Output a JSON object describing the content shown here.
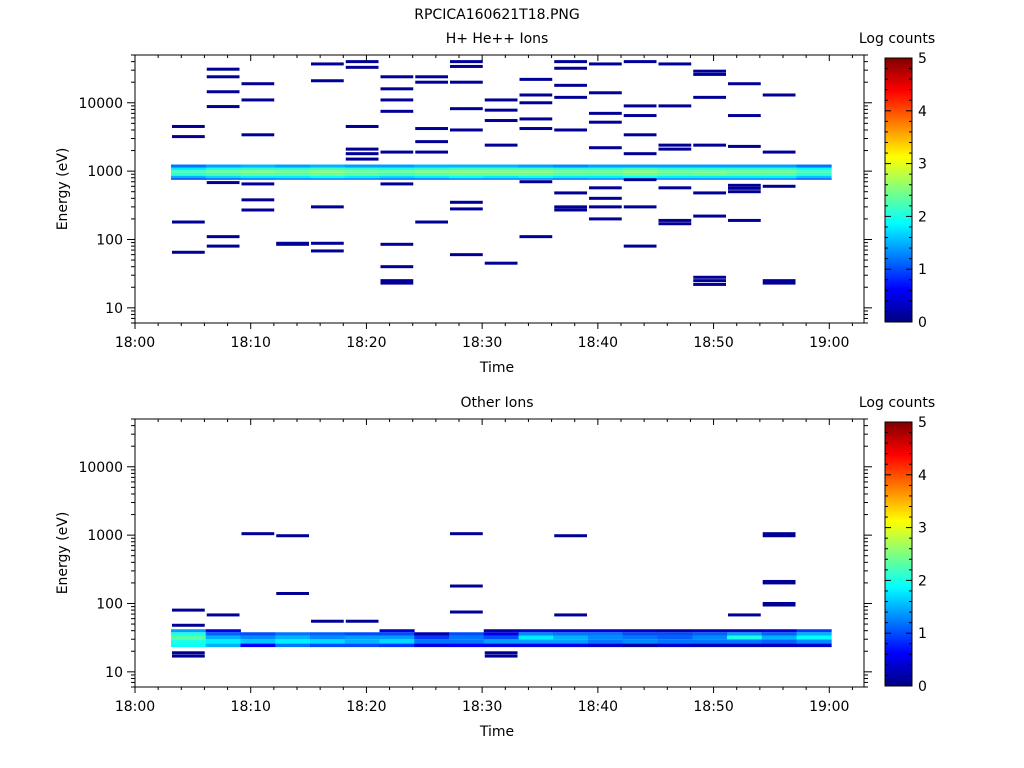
{
  "figure": {
    "title": "RPCICA160621T18.PNG"
  },
  "colorbar": {
    "label": "Log counts",
    "range": [
      0,
      5
    ],
    "ticks": [
      "0",
      "1",
      "2",
      "3",
      "4",
      "5"
    ],
    "colormap": "jet"
  },
  "chart_data": [
    {
      "type": "heatmap",
      "title": "H+ He++ Ions",
      "xlabel": "Time",
      "ylabel": "Energy (eV)",
      "yscale": "log",
      "ylim": [
        6,
        50000
      ],
      "xlim": [
        "18:00",
        "19:03"
      ],
      "xtick_labels": [
        "18:00",
        "18:10",
        "18:20",
        "18:30",
        "18:40",
        "18:50",
        "19:00"
      ],
      "ytick_labels": [
        "10",
        "100",
        "1000",
        "10000"
      ],
      "time_bins": [
        "18:03",
        "18:06",
        "18:09",
        "18:13",
        "18:16",
        "18:19",
        "18:22",
        "18:25",
        "18:28",
        "18:32",
        "18:35",
        "18:38",
        "18:41",
        "18:44",
        "18:47",
        "18:51",
        "18:54",
        "18:57",
        "19:00"
      ],
      "main_band": {
        "energy_low_eV": 750,
        "energy_high_eV": 1250,
        "rows": [
          {
            "energy_eV": 750,
            "values": [
              0.7,
              0.8,
              0.9,
              1.0,
              1.0,
              1.0,
              0.9,
              0.9,
              1.0,
              1.0,
              1.0,
              0.9,
              1.0,
              1.0,
              1.0,
              1.0,
              1.0,
              1.0,
              0.8
            ]
          },
          {
            "energy_eV": 820,
            "values": [
              1.5,
              1.7,
              1.8,
              1.8,
              1.9,
              1.8,
              1.7,
              1.8,
              1.9,
              1.8,
              1.9,
              1.8,
              1.8,
              1.9,
              1.8,
              1.8,
              1.8,
              1.8,
              1.6
            ]
          },
          {
            "energy_eV": 900,
            "values": [
              2.1,
              2.2,
              2.3,
              2.3,
              2.4,
              2.3,
              2.2,
              2.3,
              2.4,
              2.4,
              2.4,
              2.3,
              2.3,
              2.4,
              2.3,
              2.4,
              2.3,
              2.3,
              2.1
            ]
          },
          {
            "energy_eV": 990,
            "values": [
              2.2,
              2.4,
              2.5,
              2.4,
              2.5,
              2.4,
              2.4,
              2.5,
              2.5,
              2.5,
              2.5,
              2.4,
              2.4,
              2.5,
              2.4,
              2.4,
              2.4,
              2.4,
              2.2
            ]
          },
          {
            "energy_eV": 1080,
            "values": [
              1.8,
              2.0,
              2.1,
              2.1,
              2.2,
              2.1,
              2.0,
              2.1,
              2.2,
              2.2,
              2.2,
              2.1,
              2.1,
              2.2,
              2.1,
              2.1,
              2.1,
              2.1,
              1.9
            ]
          },
          {
            "energy_eV": 1180,
            "values": [
              1.2,
              1.4,
              1.5,
              1.4,
              1.5,
              1.4,
              1.4,
              1.5,
              1.5,
              1.5,
              1.4,
              1.3,
              1.4,
              1.4,
              1.4,
              1.4,
              1.4,
              1.4,
              1.2
            ]
          }
        ]
      },
      "isolated_counts": [
        {
          "t": 0,
          "e": [
            65,
            180,
            3200,
            4500
          ]
        },
        {
          "t": 1,
          "e": [
            80,
            110,
            680,
            8800,
            14500,
            24000,
            31000
          ]
        },
        {
          "t": 2,
          "e": [
            270,
            380,
            650,
            3400,
            11000,
            19000
          ]
        },
        {
          "t": 3,
          "e": [
            85,
            88
          ]
        },
        {
          "t": 4,
          "e": [
            68,
            88,
            300,
            21000,
            37000
          ]
        },
        {
          "t": 5,
          "e": [
            1500,
            1800,
            2100,
            4500,
            33000,
            40000
          ]
        },
        {
          "t": 6,
          "e": [
            23,
            25,
            40,
            85,
            650,
            1900,
            7500,
            11000,
            16000,
            24000
          ]
        },
        {
          "t": 7,
          "e": [
            180,
            1900,
            2700,
            4200,
            20000,
            24000
          ]
        },
        {
          "t": 8,
          "e": [
            60,
            280,
            350,
            4000,
            8200,
            20000,
            34000,
            40000
          ]
        },
        {
          "t": 9,
          "e": [
            45,
            2400,
            5500,
            7800,
            11000
          ]
        },
        {
          "t": 10,
          "e": [
            110,
            700,
            4200,
            5800,
            10000,
            13000,
            22000
          ]
        },
        {
          "t": 11,
          "e": [
            270,
            300,
            480,
            4000,
            12000,
            18000,
            32000,
            40000
          ]
        },
        {
          "t": 12,
          "e": [
            200,
            300,
            400,
            570,
            2200,
            5200,
            7000,
            14000,
            37000
          ]
        },
        {
          "t": 13,
          "e": [
            80,
            300,
            750,
            1800,
            3400,
            6500,
            9000,
            40000
          ]
        },
        {
          "t": 14,
          "e": [
            170,
            190,
            570,
            2100,
            2400,
            9000,
            37000
          ]
        },
        {
          "t": 15,
          "e": [
            22,
            25,
            28,
            220,
            480,
            2400,
            12000,
            26000,
            29000
          ]
        },
        {
          "t": 16,
          "e": [
            190,
            500,
            560,
            620,
            2300,
            6500,
            19000
          ]
        },
        {
          "t": 17,
          "e": [
            23,
            25,
            600,
            1900,
            13000
          ]
        }
      ]
    },
    {
      "type": "heatmap",
      "title": "Other Ions",
      "xlabel": "Time",
      "ylabel": "Energy (eV)",
      "yscale": "log",
      "ylim": [
        6,
        50000
      ],
      "xlim": [
        "18:00",
        "19:03"
      ],
      "xtick_labels": [
        "18:00",
        "18:10",
        "18:20",
        "18:30",
        "18:40",
        "18:50",
        "19:00"
      ],
      "ytick_labels": [
        "10",
        "100",
        "1000",
        "10000"
      ],
      "time_bins": [
        "18:03",
        "18:06",
        "18:09",
        "18:13",
        "18:16",
        "18:19",
        "18:22",
        "18:25",
        "18:28",
        "18:32",
        "18:35",
        "18:38",
        "18:41",
        "18:44",
        "18:47",
        "18:51",
        "18:54",
        "18:57",
        "19:00"
      ],
      "main_band": {
        "energy_low_eV": 23,
        "energy_high_eV": 42,
        "rows": [
          {
            "energy_eV": 24,
            "values": [
              1.9,
              1.5,
              0.6,
              1.2,
              1.0,
              1.0,
              0.9,
              0.5,
              0.6,
              0.5,
              0.5,
              0.5,
              0.4,
              0.2,
              0.4,
              0.3,
              0.3,
              0.3,
              0.4
            ]
          },
          {
            "energy_eV": 28,
            "values": [
              2.0,
              1.8,
              1.6,
              1.8,
              1.7,
              1.5,
              1.7,
              1.2,
              1.2,
              1.4,
              1.4,
              1.4,
              1.2,
              1.3,
              1.2,
              1.2,
              1.2,
              1.1,
              1.3
            ]
          },
          {
            "energy_eV": 32,
            "values": [
              2.3,
              1.5,
              1.3,
              1.5,
              1.3,
              1.4,
              1.4,
              0.9,
              1.2,
              1.0,
              1.8,
              1.5,
              1.3,
              1.2,
              1.1,
              1.3,
              2.0,
              1.5,
              1.9
            ]
          },
          {
            "energy_eV": 36,
            "values": [
              2.0,
              1.1,
              1.0,
              1.2,
              1.1,
              1.0,
              1.0,
              0.2,
              1.0,
              0.5,
              1.3,
              1.2,
              1.2,
              1.0,
              1.0,
              1.1,
              1.4,
              1.1,
              1.5
            ]
          },
          {
            "energy_eV": 40,
            "values": [
              1.4,
              0.5,
              0,
              0,
              0,
              0,
              0.4,
              0,
              0,
              0.2,
              0.4,
              0.4,
              0.4,
              0.3,
              0.2,
              0.3,
              0.3,
              0.4,
              0.9
            ]
          }
        ]
      },
      "isolated_counts": [
        {
          "t": 0,
          "e": [
            17,
            19,
            48,
            80
          ]
        },
        {
          "t": 1,
          "e": [
            68
          ]
        },
        {
          "t": 2,
          "e": [
            1050
          ]
        },
        {
          "t": 3,
          "e": [
            140,
            980
          ]
        },
        {
          "t": 4,
          "e": [
            55
          ]
        },
        {
          "t": 5,
          "e": [
            55
          ]
        },
        {
          "t": 8,
          "e": [
            75,
            180,
            1050
          ]
        },
        {
          "t": 9,
          "e": [
            17,
            19
          ]
        },
        {
          "t": 11,
          "e": [
            68,
            980
          ]
        },
        {
          "t": 16,
          "e": [
            68
          ]
        },
        {
          "t": 17,
          "e": [
            95,
            100,
            200,
            210,
            980,
            1050
          ]
        }
      ]
    }
  ]
}
